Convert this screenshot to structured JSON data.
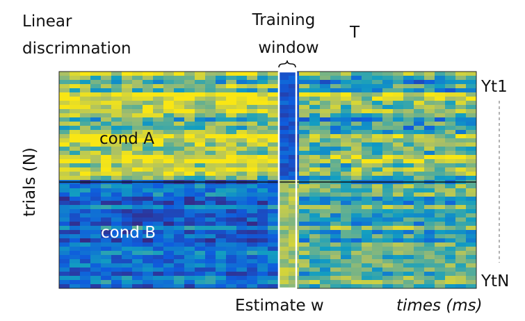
{
  "labels": {
    "method_line1": "Linear",
    "method_line2": "discrimnation",
    "window_line1": "Training",
    "window_line2": "window",
    "transpose": "T",
    "y_axis": "trials (N)",
    "cond_a": "cond A",
    "cond_b": "cond B",
    "first_output": "Yt1",
    "last_output": "YtN",
    "estimate": "Estimate w",
    "time_axis": "times (ms)"
  }
}
